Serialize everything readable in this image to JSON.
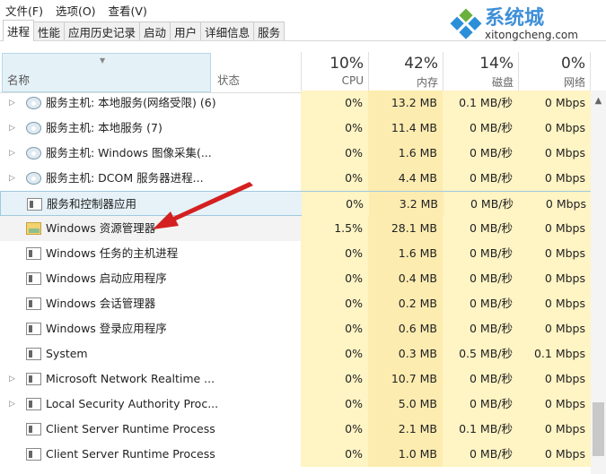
{
  "menu": [
    "文件(F)",
    "选项(O)",
    "查看(V)"
  ],
  "tabs": [
    "进程",
    "性能",
    "应用历史记录",
    "启动",
    "用户",
    "详细信息",
    "服务"
  ],
  "active_tab": 0,
  "header": {
    "name": "名称",
    "status": "状态",
    "cpu_pct": "10%",
    "cpu": "CPU",
    "mem_pct": "42%",
    "mem": "内存",
    "disk_pct": "14%",
    "disk": "磁盘",
    "net_pct": "0%",
    "net": "网络"
  },
  "rows": [
    {
      "name": "服务主机: 本地服务(网络受限) (6)",
      "icon": "gear-icon",
      "expand": true,
      "cpu": "0%",
      "mem": "13.2 MB",
      "disk": "0.1 MB/秒",
      "net": "0 Mbps"
    },
    {
      "name": "服务主机: 本地服务 (7)",
      "icon": "gear-icon",
      "expand": true,
      "cpu": "0%",
      "mem": "11.4 MB",
      "disk": "0 MB/秒",
      "net": "0 Mbps"
    },
    {
      "name": "服务主机: Windows 图像采集(...",
      "icon": "gear-icon",
      "expand": true,
      "cpu": "0%",
      "mem": "1.6 MB",
      "disk": "0 MB/秒",
      "net": "0 Mbps"
    },
    {
      "name": "服务主机: DCOM 服务器进程...",
      "icon": "gear-icon",
      "expand": true,
      "cpu": "0%",
      "mem": "4.4 MB",
      "disk": "0 MB/秒",
      "net": "0 Mbps"
    },
    {
      "name": "服务和控制器应用",
      "icon": "window-icon",
      "expand": false,
      "cpu": "0%",
      "mem": "3.2 MB",
      "disk": "0 MB/秒",
      "net": "0 Mbps",
      "state": "selected"
    },
    {
      "name": "Windows 资源管理器",
      "icon": "folder-icon",
      "expand": false,
      "cpu": "1.5%",
      "mem": "28.1 MB",
      "disk": "0 MB/秒",
      "net": "0 Mbps",
      "state": "hover"
    },
    {
      "name": "Windows 任务的主机进程",
      "icon": "window-icon",
      "expand": false,
      "cpu": "0%",
      "mem": "1.6 MB",
      "disk": "0 MB/秒",
      "net": "0 Mbps"
    },
    {
      "name": "Windows 启动应用程序",
      "icon": "window-icon",
      "expand": false,
      "cpu": "0%",
      "mem": "0.4 MB",
      "disk": "0 MB/秒",
      "net": "0 Mbps"
    },
    {
      "name": "Windows 会话管理器",
      "icon": "window-icon",
      "expand": false,
      "cpu": "0%",
      "mem": "0.2 MB",
      "disk": "0 MB/秒",
      "net": "0 Mbps"
    },
    {
      "name": "Windows 登录应用程序",
      "icon": "window-icon",
      "expand": false,
      "cpu": "0%",
      "mem": "0.6 MB",
      "disk": "0 MB/秒",
      "net": "0 Mbps"
    },
    {
      "name": "System",
      "icon": "window-icon",
      "expand": false,
      "cpu": "0%",
      "mem": "0.3 MB",
      "disk": "0.5 MB/秒",
      "net": "0.1 Mbps"
    },
    {
      "name": "Microsoft Network Realtime ...",
      "icon": "window-icon",
      "expand": true,
      "cpu": "0%",
      "mem": "10.7 MB",
      "disk": "0 MB/秒",
      "net": "0 Mbps"
    },
    {
      "name": "Local Security Authority Proc...",
      "icon": "window-icon",
      "expand": true,
      "cpu": "0%",
      "mem": "5.0 MB",
      "disk": "0 MB/秒",
      "net": "0 Mbps"
    },
    {
      "name": "Client Server Runtime Process",
      "icon": "window-icon",
      "expand": false,
      "cpu": "0%",
      "mem": "2.1 MB",
      "disk": "0.1 MB/秒",
      "net": "0 Mbps"
    },
    {
      "name": "Client Server Runtime Process",
      "icon": "window-icon",
      "expand": false,
      "cpu": "0%",
      "mem": "1.0 MB",
      "disk": "0 MB/秒",
      "net": "0 Mbps"
    }
  ],
  "watermark": {
    "text": "系统城",
    "url": "xitongcheng.com"
  },
  "colors": {
    "selected": "#e6f2f8",
    "heat_light": "#fff4c4",
    "heat_mem": "#fdecb0",
    "arrow": "#d42020"
  }
}
